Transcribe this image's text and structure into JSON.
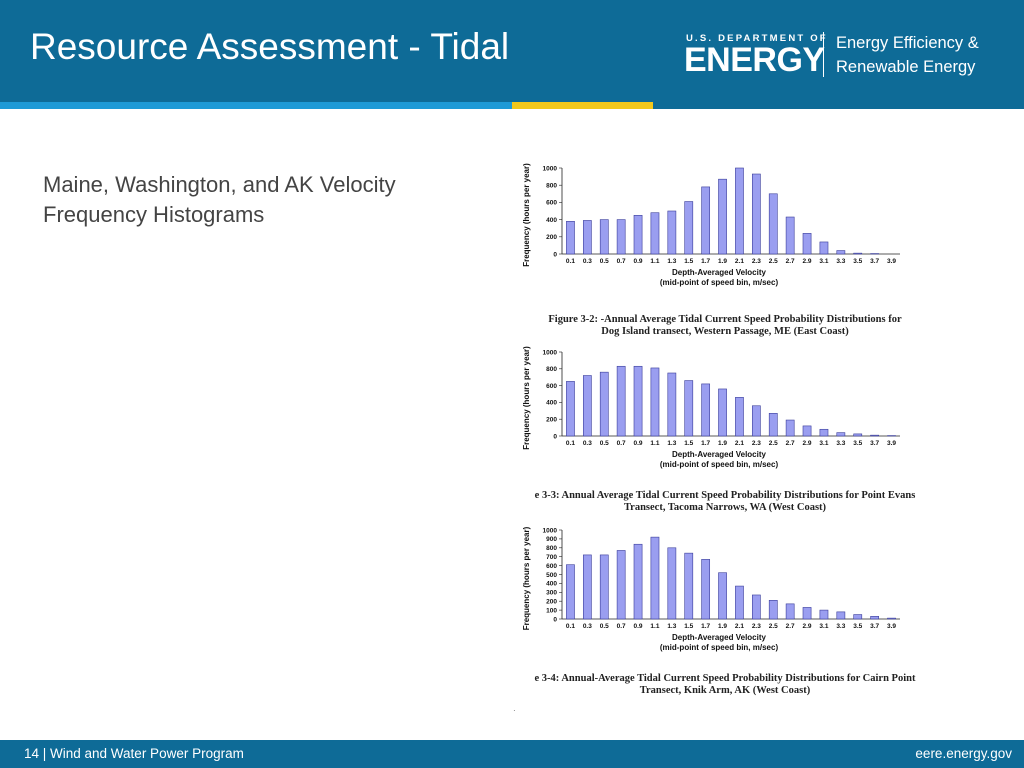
{
  "header": {
    "title": "Resource Assessment - Tidal",
    "doe_small": "U.S. DEPARTMENT OF",
    "doe_big": "ENERGY",
    "eere_line1": "Energy Efficiency &",
    "eere_line2": "Renewable Energy"
  },
  "body": {
    "text": "Maine, Washington, and AK Velocity Frequency Histograms"
  },
  "footer": {
    "left": "14 | Wind and Water Power Program",
    "right": "eere.energy.gov"
  },
  "colors": {
    "header_bg": "#0e6b97",
    "stripe_blue": "#1e9ad6",
    "stripe_yellow": "#f2c81c",
    "bar_fill": "#9a9ef0",
    "bar_stroke": "#3a3d9a"
  },
  "chart_data": [
    {
      "type": "bar",
      "categories": [
        "0.1",
        "0.3",
        "0.5",
        "0.7",
        "0.9",
        "1.1",
        "1.3",
        "1.5",
        "1.7",
        "1.9",
        "2.1",
        "2.3",
        "2.5",
        "2.7",
        "2.9",
        "3.1",
        "3.3",
        "3.5",
        "3.7",
        "3.9"
      ],
      "values": [
        380,
        390,
        400,
        400,
        450,
        480,
        500,
        610,
        780,
        870,
        1000,
        930,
        700,
        430,
        240,
        140,
        40,
        10,
        5,
        0
      ],
      "yticks": [
        "0",
        "200",
        "400",
        "600",
        "800",
        "1000"
      ],
      "ylim": [
        0,
        1000
      ],
      "ylabel": "Frequency (hours per year)",
      "xlabel_line1": "Depth-Averaged Velocity",
      "xlabel_line2": "(mid-point of speed bin, m/sec)",
      "caption_line1": "Figure 3-2: -Annual Average Tidal Current Speed Probability Distributions for",
      "caption_line2": "Dog Island transect, Western Passage, ME (East Coast)",
      "grid": false
    },
    {
      "type": "bar",
      "categories": [
        "0.1",
        "0.3",
        "0.5",
        "0.7",
        "0.9",
        "1.1",
        "1.3",
        "1.5",
        "1.7",
        "1.9",
        "2.1",
        "2.3",
        "2.5",
        "2.7",
        "2.9",
        "3.1",
        "3.3",
        "3.5",
        "3.7",
        "3.9"
      ],
      "values": [
        650,
        720,
        760,
        830,
        830,
        810,
        750,
        660,
        620,
        560,
        460,
        360,
        270,
        190,
        120,
        80,
        40,
        25,
        10,
        5
      ],
      "yticks": [
        "0",
        "200",
        "400",
        "600",
        "800",
        "1000"
      ],
      "ylim": [
        0,
        1000
      ],
      "ylabel": "Frequency (hours per year)",
      "xlabel_line1": "Depth-Averaged Velocity",
      "xlabel_line2": "(mid-point of speed bin, m/sec)",
      "caption_line1": "e 3-3: Annual Average Tidal Current Speed Probability Distributions for Point Evans",
      "caption_line2": "Transect, Tacoma Narrows, WA (West Coast)",
      "grid": false
    },
    {
      "type": "bar",
      "categories": [
        "0.1",
        "0.3",
        "0.5",
        "0.7",
        "0.9",
        "1.1",
        "1.3",
        "1.5",
        "1.7",
        "1.9",
        "2.1",
        "2.3",
        "2.5",
        "2.7",
        "2.9",
        "3.1",
        "3.3",
        "3.5",
        "3.7",
        "3.9"
      ],
      "values": [
        610,
        720,
        720,
        770,
        840,
        920,
        800,
        740,
        670,
        520,
        370,
        270,
        210,
        170,
        130,
        100,
        80,
        50,
        30,
        10
      ],
      "yticks": [
        "0",
        "100",
        "200",
        "300",
        "400",
        "500",
        "600",
        "700",
        "800",
        "900",
        "1000"
      ],
      "ylim": [
        0,
        1000
      ],
      "ylabel": "Frequency (hours per year)",
      "xlabel_line1": "Depth-Averaged Velocity",
      "xlabel_line2": "(mid-point of speed bin, m/sec)",
      "caption_line1": "e 3-4: Annual-Average Tidal Current Speed Probability Distributions for Cairn Point",
      "caption_line2": "Transect, Knik Arm, AK (West Coast)",
      "grid": false
    }
  ]
}
